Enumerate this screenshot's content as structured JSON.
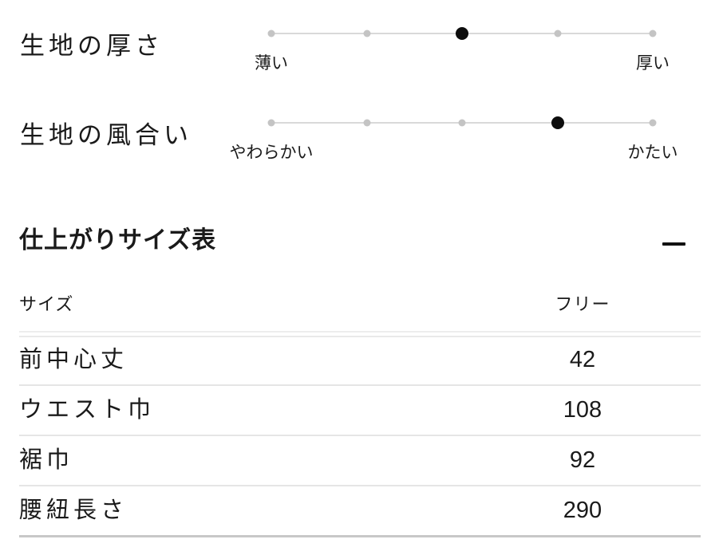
{
  "scales": [
    {
      "title": "生地の厚さ",
      "left_label": "薄い",
      "right_label": "厚い",
      "steps": 5,
      "selected_index": 2
    },
    {
      "title": "生地の風合い",
      "left_label": "やわらかい",
      "right_label": "かたい",
      "steps": 5,
      "selected_index": 3
    }
  ],
  "size_section": {
    "title": "仕上がりサイズ表",
    "toggle_icon": "minus-icon",
    "table": {
      "header": {
        "label_column": "サイズ",
        "value_column": "フリー"
      },
      "rows": [
        {
          "label": "前中心丈",
          "value": "42"
        },
        {
          "label": "ウエスト巾",
          "value": "108"
        },
        {
          "label": "裾巾",
          "value": "92"
        },
        {
          "label": "腰紐長さ",
          "value": "290"
        }
      ]
    }
  },
  "colors": {
    "text": "#1a1a1a",
    "dot_inactive": "#c4c4c4",
    "dot_active": "#0d0d0d",
    "track": "#d9d9d9",
    "divider_light": "#e9e9e9",
    "divider_dark": "#c8c8c8",
    "icon": "#111111"
  }
}
